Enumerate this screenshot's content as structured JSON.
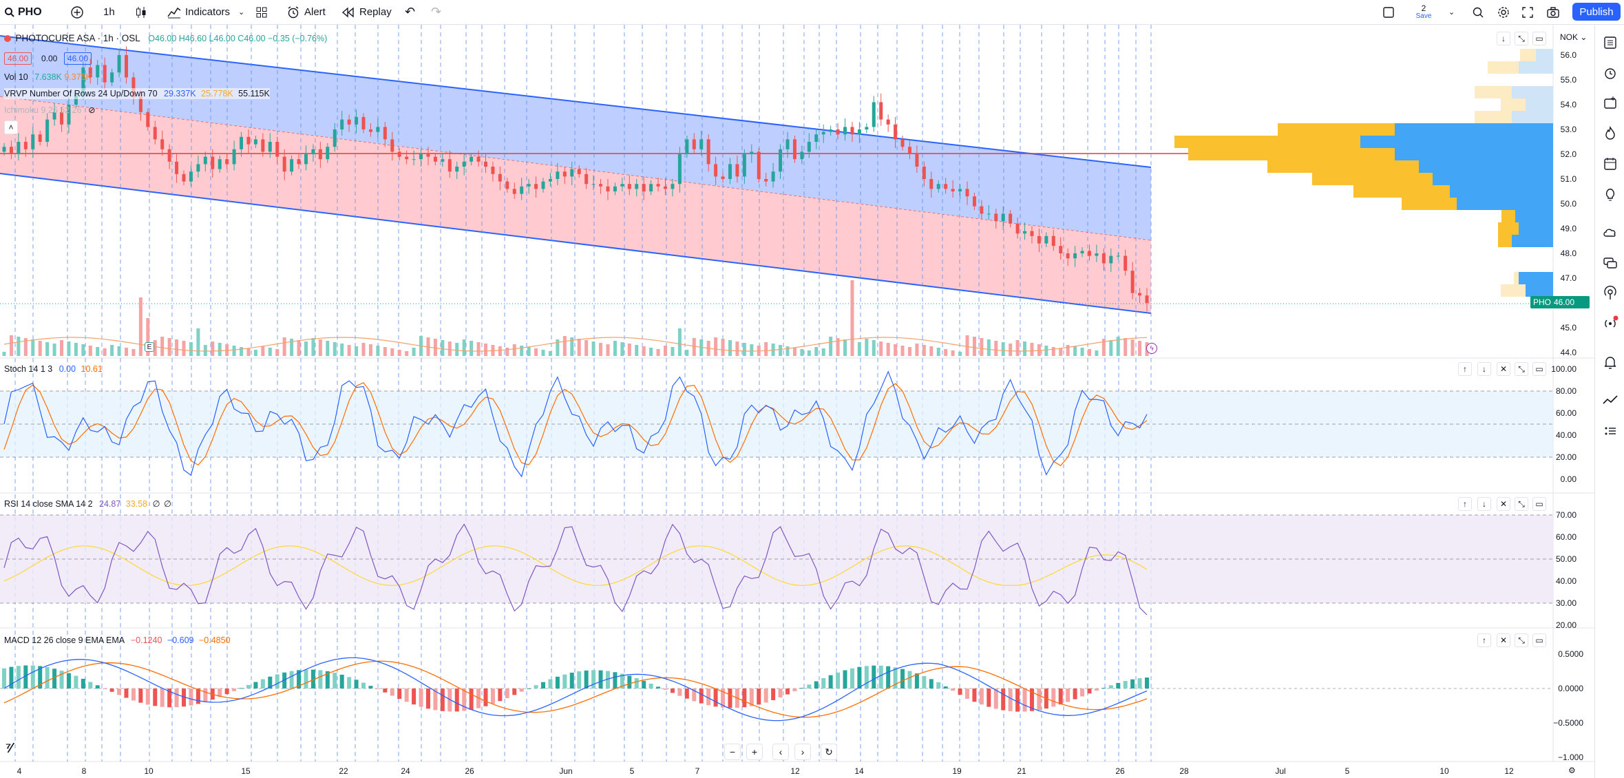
{
  "toolbar": {
    "symbol": "PHO",
    "interval": "1h",
    "indicators_label": "Indicators",
    "alert_label": "Alert",
    "replay_label": "Replay",
    "save_count": "2",
    "save_label": "Save",
    "publish_label": "Publish"
  },
  "legend": {
    "title": "PHOTOCURE ASA · 1h · OSL",
    "ohlc": {
      "o": "O46.00",
      "h": "H46.60",
      "l": "L46.00",
      "c": "C46.00",
      "chg": "−0.35 (−0.76%)"
    },
    "bid": "46.00",
    "spread": "0.00",
    "ask": "46.00",
    "vol_name": "Vol 10",
    "vol_v1": "7.638K",
    "vol_v2": "9.375K",
    "vrvp_name": "VRVP Number Of Rows 24 Up/Down 70",
    "vrvp_v1": "29.337K",
    "vrvp_v2": "25.778K",
    "vrvp_v3": "55.115K",
    "ichimoku_name": "Ichimoku 9 26 52 26",
    "currency": "NOK",
    "last_ticker": "PHO",
    "last_price": "46.00",
    "earnings_label": "E"
  },
  "stoch_legend": {
    "name": "Stoch 14 1 3",
    "k": "0.00",
    "d": "10.61"
  },
  "rsi_legend": {
    "name": "RSI 14 close SMA 14 2",
    "rsi": "24.87",
    "sma": "33.58",
    "extra1": "∅",
    "extra2": "∅"
  },
  "macd_legend": {
    "name": "MACD 12 26 close 9 EMA EMA",
    "hist": "−0.1240",
    "macd": "−0.609",
    "signal": "−0.4850"
  },
  "colors": {
    "up": "#26a69a",
    "down": "#ef5350",
    "volUp": "#7fd1c6",
    "volDown": "#f5a3a3",
    "channelUpper": "#b3c6ff",
    "channelLower": "#ffc2c8",
    "channelLine": "#2962ff",
    "redLine": "#e53935",
    "stochK": "#2962ff",
    "stochD": "#ff6d00",
    "rsi": "#7e57c2",
    "rsiSma": "#fdd835",
    "macd": "#2962ff",
    "signal": "#ff6d00",
    "vrvpUp": "#42a5f5",
    "vrvpDown": "#fbc02d"
  },
  "chart_data": [
    {
      "type": "candlestick",
      "title": "PHOTOCURE ASA · 1h · OSL",
      "y_ticks": [
        "56.0",
        "55.0",
        "54.0",
        "53.0",
        "52.0",
        "51.0",
        "50.0",
        "49.0",
        "48.0",
        "47.0",
        "46.0",
        "45.0",
        "44.0"
      ],
      "x_ticks": [
        "4",
        "8",
        "10",
        "15",
        "22",
        "24",
        "26",
        "Jun",
        "5",
        "7",
        "12",
        "14",
        "19",
        "21",
        "26",
        "28",
        "Jul",
        "5",
        "10",
        "12"
      ],
      "ylim": [
        43.9,
        56.4
      ],
      "price_close": [
        52.3,
        52.0,
        52.5,
        52.2,
        52.8,
        52.5,
        53.4,
        53.7,
        53.2,
        54.0,
        54.4,
        55.5,
        55.1,
        55.6,
        54.9,
        55.3,
        56.0,
        55.1,
        54.3,
        53.7,
        53.1,
        52.6,
        52.2,
        51.7,
        51.2,
        50.9,
        51.3,
        51.6,
        51.9,
        51.4,
        51.8,
        51.6,
        52.2,
        52.7,
        52.4,
        52.6,
        52.1,
        52.5,
        51.9,
        51.3,
        51.8,
        51.6,
        52.0,
        52.2,
        51.8,
        52.3,
        53.0,
        53.4,
        53.2,
        53.5,
        53.0,
        52.9,
        53.1,
        52.6,
        52.1,
        51.9,
        51.8,
        51.8,
        52.0,
        51.9,
        51.7,
        51.8,
        51.3,
        51.5,
        51.7,
        51.9,
        51.7,
        51.5,
        51.2,
        50.9,
        50.6,
        50.4,
        50.7,
        50.8,
        50.6,
        50.9,
        51.0,
        51.3,
        51.1,
        51.4,
        51.2,
        50.8,
        50.8,
        50.7,
        50.5,
        50.7,
        50.8,
        50.6,
        50.8,
        50.5,
        50.8,
        50.7,
        50.6,
        50.8,
        52.0,
        52.6,
        52.2,
        52.6,
        51.6,
        51.1,
        51.0,
        51.6,
        51.1,
        52.0,
        52.1,
        51.0,
        50.9,
        51.3,
        52.2,
        52.6,
        51.8,
        52.1,
        52.5,
        52.8,
        52.9,
        53.0,
        52.8,
        53.1,
        52.8,
        53.0,
        53.1,
        54.1,
        53.4,
        53.2,
        52.6,
        52.3,
        52.0,
        51.5,
        51.0,
        50.6,
        50.8,
        50.6,
        50.5,
        50.6,
        50.3,
        49.9,
        49.6,
        49.6,
        49.3,
        49.6,
        49.2,
        48.8,
        48.9,
        48.7,
        48.4,
        48.7,
        48.3,
        48.0,
        47.8,
        48.0,
        48.1,
        47.9,
        48.0,
        47.6,
        47.9,
        47.9,
        47.3,
        46.4,
        46.3,
        46.0
      ],
      "series_indicators": [
        {
          "name": "Volume",
          "values": [
            5,
            7,
            9,
            12,
            25,
            16,
            11,
            30,
            28,
            20,
            15,
            12,
            10,
            14,
            18,
            9,
            13,
            11,
            8,
            16,
            12,
            14,
            10,
            9,
            12,
            17,
            11,
            13,
            10,
            18
          ]
        },
        {
          "name": "Stoch 14 1 3",
          "k_last": 0.0,
          "d_last": 10.61
        },
        {
          "name": "RSI 14 close SMA 14 2",
          "rsi_last": 24.87,
          "sma_last": 33.58
        },
        {
          "name": "MACD 12 26 close 9 EMA EMA",
          "hist_last": -0.124,
          "macd_last": -0.609,
          "signal_last": -0.485
        }
      ]
    }
  ],
  "panes": {
    "stoch_ticks": [
      "100.00",
      "80.00",
      "60.00",
      "40.00",
      "20.00",
      "0.00"
    ],
    "rsi_ticks": [
      "70.00",
      "60.00",
      "50.00",
      "40.00",
      "30.00",
      "20.00"
    ],
    "macd_ticks": [
      "0.5000",
      "0.0000",
      "−0.5000",
      "−1.000"
    ]
  }
}
